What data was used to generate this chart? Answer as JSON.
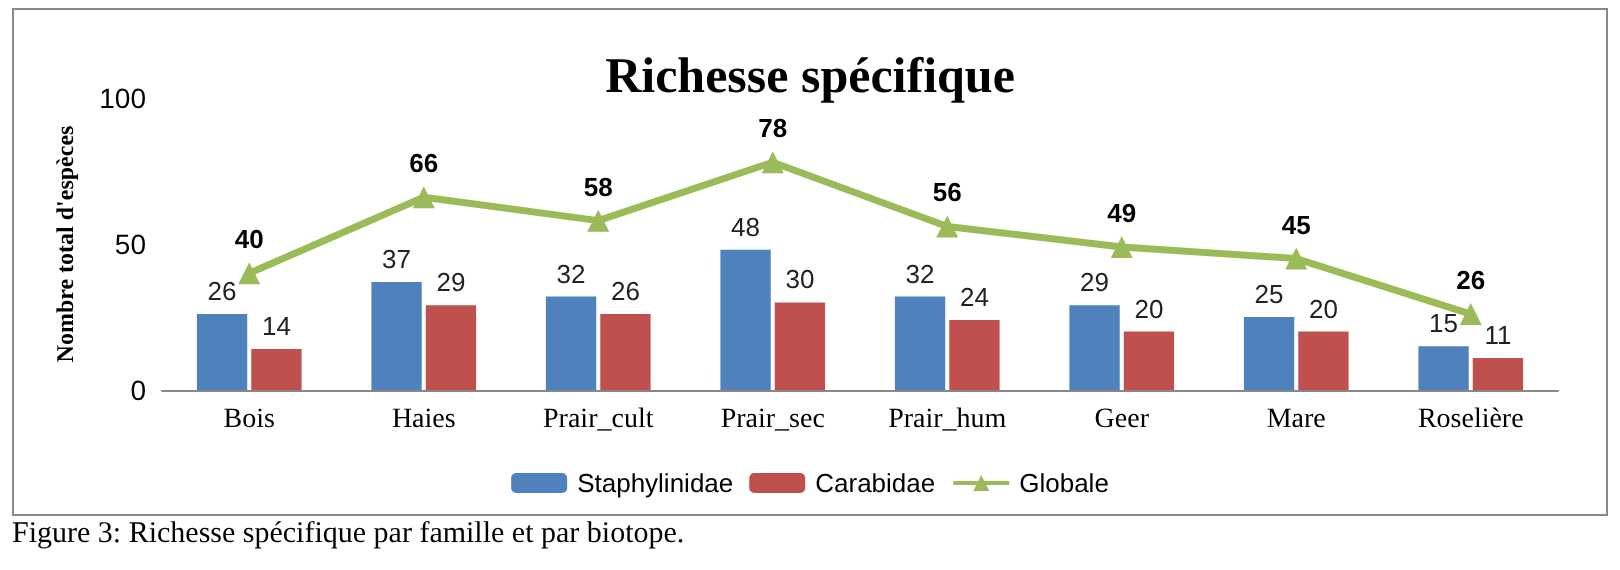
{
  "chart_data": {
    "type": "bar",
    "title": "Richesse spécifique",
    "ylabel": "Nombre total d'espèces",
    "categories": [
      "Bois",
      "Haies",
      "Prair_cult",
      "Prair_sec",
      "Prair_hum",
      "Geer",
      "Mare",
      "Roselière"
    ],
    "series": [
      {
        "name": "Staphylinidae",
        "color": "#4f81bd",
        "values": [
          26,
          37,
          32,
          48,
          32,
          29,
          25,
          15
        ]
      },
      {
        "name": "Carabidae",
        "color": "#c0504d",
        "values": [
          14,
          29,
          26,
          30,
          24,
          20,
          20,
          11
        ]
      },
      {
        "name": "Globale",
        "type": "line",
        "color": "#9bbb59",
        "marker": "triangle",
        "values": [
          40,
          66,
          58,
          78,
          56,
          49,
          45,
          26
        ]
      }
    ],
    "ylim": [
      0,
      100
    ],
    "yticks": [
      0,
      50,
      100
    ],
    "grid": false,
    "legend": "bottom",
    "data_labels": true,
    "annotations": [
      "Figure 3: Richesse spécifique par famille et par biotope."
    ]
  }
}
